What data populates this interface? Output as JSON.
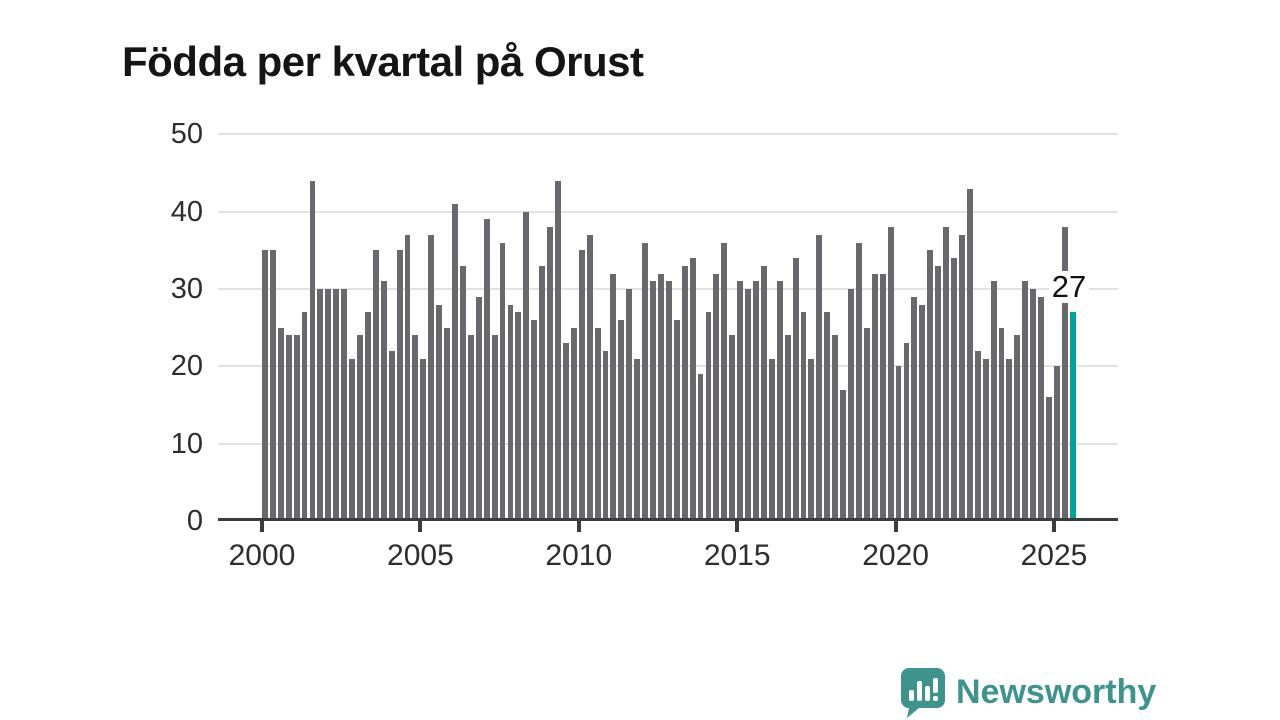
{
  "title": "Födda per kvartal på Orust",
  "annotation": {
    "label": "27"
  },
  "logo": {
    "text": "Newsworthy",
    "icon": "newsworthy-speech-bubble-chart-icon"
  },
  "colors": {
    "bar": "#69696d",
    "highlight": "#00a29b",
    "grid": "#e3e3e3",
    "axis": "#3b3b3b",
    "tick_text": "#2d2d2d",
    "title_text": "#151515",
    "annotation_text": "#111111",
    "logo": "#3d948c",
    "background": "#ffffff"
  },
  "chart_data": {
    "type": "bar",
    "title": "Födda per kvartal på Orust",
    "frequency": "quarterly",
    "x_start": "2000 Q1",
    "x_end": "2025 Q3",
    "values": [
      35,
      35,
      25,
      24,
      24,
      27,
      44,
      30,
      30,
      30,
      30,
      21,
      24,
      27,
      35,
      31,
      22,
      35,
      37,
      24,
      21,
      37,
      28,
      25,
      41,
      33,
      24,
      29,
      39,
      24,
      36,
      28,
      27,
      40,
      26,
      33,
      38,
      44,
      23,
      25,
      35,
      37,
      25,
      22,
      32,
      26,
      30,
      21,
      36,
      31,
      32,
      31,
      26,
      33,
      34,
      19,
      27,
      32,
      36,
      24,
      31,
      30,
      31,
      33,
      21,
      31,
      24,
      34,
      27,
      21,
      37,
      27,
      24,
      17,
      30,
      36,
      25,
      32,
      32,
      38,
      20,
      23,
      29,
      28,
      35,
      33,
      38,
      34,
      37,
      43,
      22,
      21,
      31,
      25,
      21,
      24,
      31,
      30,
      29,
      16,
      20,
      38,
      27
    ],
    "xtick_labels": [
      "2000",
      "2005",
      "2010",
      "2015",
      "2020",
      "2025"
    ],
    "ytick_labels": [
      "0",
      "10",
      "20",
      "30",
      "40",
      "50"
    ],
    "ylim": [
      0,
      50
    ],
    "grid": "horizontal",
    "legend": "none",
    "highlight": {
      "index": 102,
      "quarter": "2025 Q3",
      "value": 27,
      "label": "27",
      "color": "#00a29b"
    }
  }
}
